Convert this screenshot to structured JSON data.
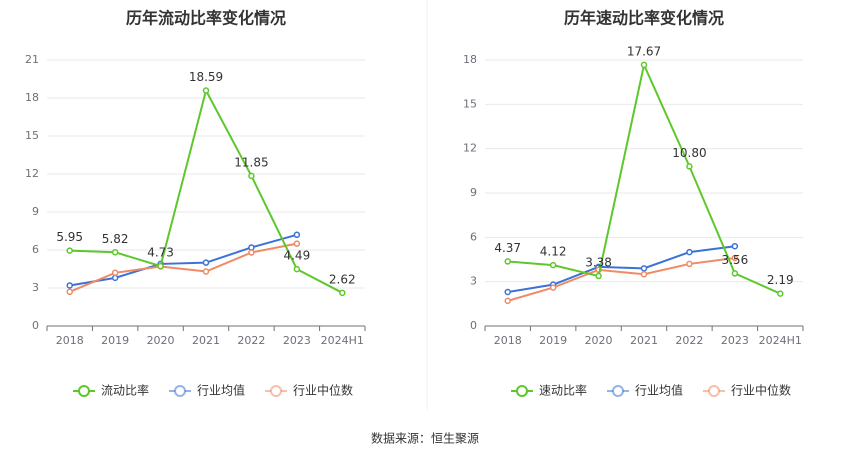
{
  "source": "数据来源：恒生聚源",
  "chart_data": [
    {
      "type": "line",
      "title": "历年流动比率变化情况",
      "categories": [
        "2018",
        "2019",
        "2020",
        "2021",
        "2022",
        "2023",
        "2024H1"
      ],
      "yticks": [
        0,
        3,
        6,
        9,
        12,
        15,
        18,
        21
      ],
      "ylim": [
        0,
        21
      ],
      "grid": true,
      "legend_position": "bottom",
      "series": [
        {
          "name": "流动比率",
          "color": "#5ec72c",
          "values": [
            5.95,
            5.82,
            4.73,
            18.59,
            11.85,
            4.49,
            2.62
          ],
          "labels": [
            "5.95",
            "5.82",
            "4.73",
            "18.59",
            "11.85",
            "4.49",
            "2.62"
          ]
        },
        {
          "name": "行业均值",
          "color": "#3a72d7",
          "values": [
            3.2,
            3.8,
            4.9,
            5.0,
            6.2,
            7.2,
            null
          ]
        },
        {
          "name": "行业中位数",
          "color": "#f08a65",
          "values": [
            2.7,
            4.2,
            4.7,
            4.3,
            5.8,
            6.5,
            null
          ]
        }
      ]
    },
    {
      "type": "line",
      "title": "历年速动比率变化情况",
      "categories": [
        "2018",
        "2019",
        "2020",
        "2021",
        "2022",
        "2023",
        "2024H1"
      ],
      "yticks": [
        0,
        3,
        6,
        9,
        12,
        15,
        18
      ],
      "ylim": [
        0,
        18
      ],
      "grid": true,
      "legend_position": "bottom",
      "series": [
        {
          "name": "速动比率",
          "color": "#5ec72c",
          "values": [
            4.37,
            4.12,
            3.38,
            17.67,
            10.8,
            3.56,
            2.19
          ],
          "labels": [
            "4.37",
            "4.12",
            "3.38",
            "17.67",
            "10.80",
            "3.56",
            "2.19"
          ]
        },
        {
          "name": "行业均值",
          "color": "#3a72d7",
          "values": [
            2.3,
            2.8,
            4.0,
            3.9,
            5.0,
            5.4,
            null
          ]
        },
        {
          "name": "行业中位数",
          "color": "#f08a65",
          "values": [
            1.7,
            2.6,
            3.8,
            3.5,
            4.2,
            4.6,
            null
          ]
        }
      ]
    }
  ]
}
